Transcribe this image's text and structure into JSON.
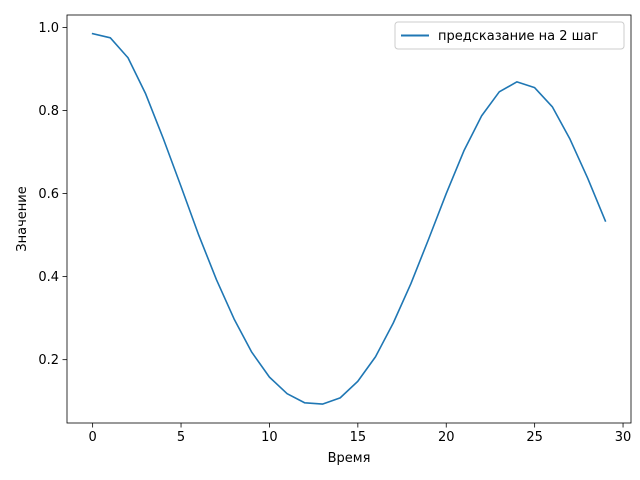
{
  "chart_data": {
    "type": "line",
    "title": "",
    "xlabel": "Время",
    "ylabel": "Значение",
    "xlim": [
      -1.45,
      30.45
    ],
    "ylim": [
      0.0475,
      1.03
    ],
    "x_ticks": [
      0,
      5,
      10,
      15,
      20,
      25,
      30
    ],
    "x_tick_labels": [
      "0",
      "5",
      "10",
      "15",
      "20",
      "25",
      "30"
    ],
    "y_ticks": [
      0.2,
      0.4,
      0.6,
      0.8,
      1.0
    ],
    "y_tick_labels": [
      "0.2",
      "0.4",
      "0.6",
      "0.8",
      "1.0"
    ],
    "grid": false,
    "legend": {
      "placement": "top-right"
    },
    "series": [
      {
        "name": "предсказание на 2 шаг",
        "color": "#1f77b4",
        "x": [
          0,
          1,
          2,
          3,
          4,
          5,
          6,
          7,
          8,
          9,
          10,
          11,
          12,
          13,
          14,
          15,
          16,
          17,
          18,
          19,
          20,
          21,
          22,
          23,
          24,
          25,
          26,
          27,
          28,
          29
        ],
        "values": [
          0.985,
          0.975,
          0.927,
          0.84,
          0.732,
          0.617,
          0.5,
          0.393,
          0.298,
          0.218,
          0.158,
          0.118,
          0.096,
          0.093,
          0.108,
          0.148,
          0.207,
          0.288,
          0.383,
          0.49,
          0.6,
          0.703,
          0.787,
          0.845,
          0.869,
          0.855,
          0.809,
          0.731,
          0.637,
          0.534
        ]
      }
    ]
  }
}
